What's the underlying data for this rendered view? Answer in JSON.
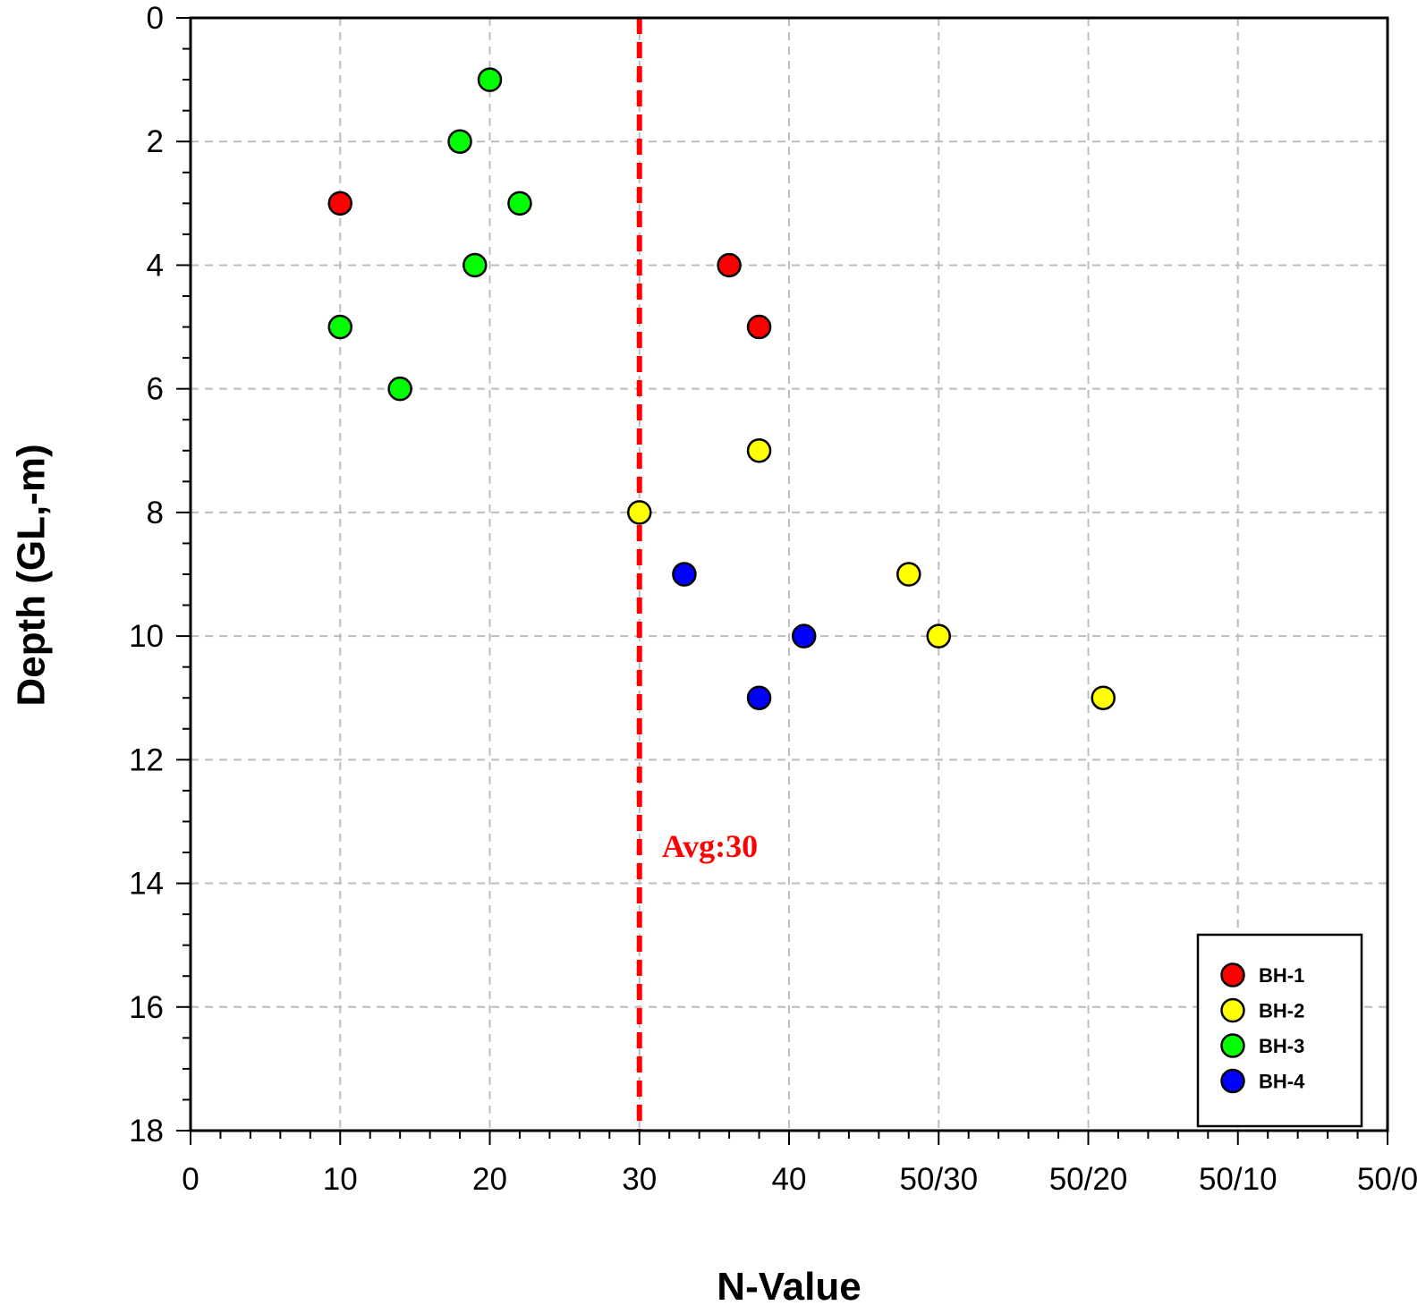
{
  "chart_data": {
    "type": "scatter",
    "title": "",
    "xlabel": "N-Value",
    "ylabel": "Depth (GL,-m)",
    "xlim": [
      0,
      80
    ],
    "ylim": [
      18,
      0
    ],
    "y_inverted": true,
    "grid": true,
    "x_ticks": [
      {
        "value": 0,
        "label": "0"
      },
      {
        "value": 10,
        "label": "10"
      },
      {
        "value": 20,
        "label": "20"
      },
      {
        "value": 30,
        "label": "30"
      },
      {
        "value": 40,
        "label": "40"
      },
      {
        "value": 50,
        "label": "50/30"
      },
      {
        "value": 60,
        "label": "50/20"
      },
      {
        "value": 70,
        "label": "50/10"
      },
      {
        "value": 80,
        "label": "50/0"
      }
    ],
    "y_ticks": [
      {
        "value": 0,
        "label": "0"
      },
      {
        "value": 2,
        "label": "2"
      },
      {
        "value": 4,
        "label": "4"
      },
      {
        "value": 6,
        "label": "6"
      },
      {
        "value": 8,
        "label": "8"
      },
      {
        "value": 10,
        "label": "10"
      },
      {
        "value": 12,
        "label": "12"
      },
      {
        "value": 14,
        "label": "14"
      },
      {
        "value": 16,
        "label": "16"
      },
      {
        "value": 18,
        "label": "18"
      }
    ],
    "legend_position": "bottom-right",
    "series": [
      {
        "name": "BH-1",
        "color": "#ff0000",
        "points": [
          {
            "x": 10,
            "y": 3
          },
          {
            "x": 36,
            "y": 4
          },
          {
            "x": 38,
            "y": 5
          }
        ]
      },
      {
        "name": "BH-2",
        "color": "#ffff00",
        "points": [
          {
            "x": 38,
            "y": 7
          },
          {
            "x": 30,
            "y": 8
          },
          {
            "x": 48,
            "y": 9
          },
          {
            "x": 50,
            "y": 10
          },
          {
            "x": 61,
            "y": 11
          }
        ]
      },
      {
        "name": "BH-3",
        "color": "#00ff00",
        "points": [
          {
            "x": 20,
            "y": 1
          },
          {
            "x": 18,
            "y": 2
          },
          {
            "x": 22,
            "y": 3
          },
          {
            "x": 19,
            "y": 4
          },
          {
            "x": 10,
            "y": 5
          },
          {
            "x": 14,
            "y": 6
          }
        ]
      },
      {
        "name": "BH-4",
        "color": "#0000ff",
        "points": [
          {
            "x": 33,
            "y": 9
          },
          {
            "x": 41,
            "y": 10
          },
          {
            "x": 38,
            "y": 11
          }
        ]
      }
    ],
    "reference_line": {
      "axis": "x",
      "value": 30,
      "color": "#ff0000",
      "style": "dashed"
    },
    "annotations": [
      {
        "text": "Avg:30",
        "x": 31.5,
        "y": 13.4,
        "color": "#ff0000"
      }
    ]
  }
}
